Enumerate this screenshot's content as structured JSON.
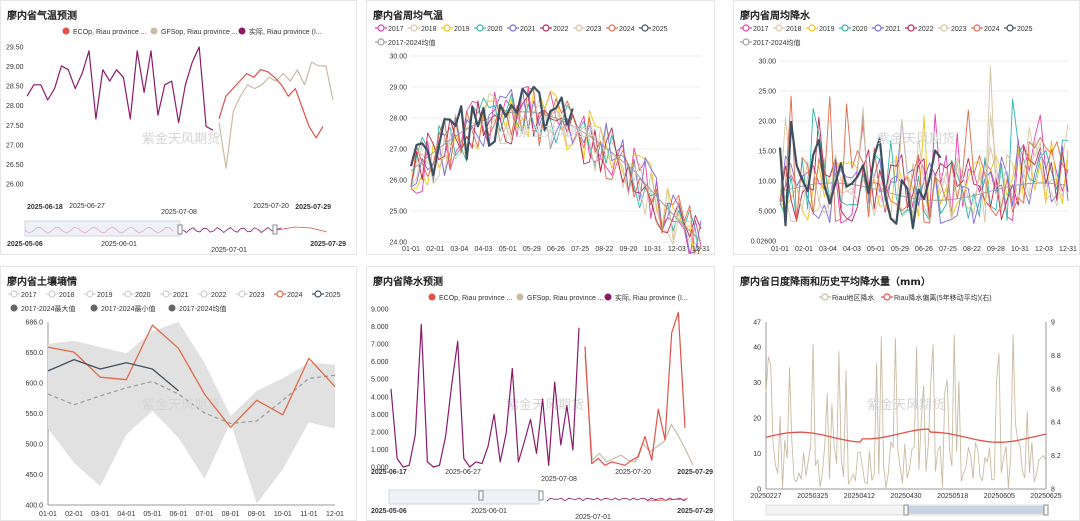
{
  "panels": {
    "temp_forecast": {
      "title": "廖内省气温预测"
    },
    "weekly_temp": {
      "title": "廖内省周均气温"
    },
    "weekly_rain": {
      "title": "廖内省周均降水"
    },
    "soil": {
      "title": "廖内省土壤墒情"
    },
    "rain_forecast": {
      "title": "廖内省降水预测"
    },
    "daily_rain": {
      "title": "廖内省日度降雨和历史平均降水量（mm）"
    }
  },
  "watermark": "紫金天风期货",
  "colors": {
    "ecop": "#e0524a",
    "gfsop": "#c9bba3",
    "actual": "#8c1a6a",
    "dark": "#3e5060",
    "y2017": "#e43fb1",
    "y2018": "#d4c8a6",
    "y2019": "#f2c318",
    "y2020": "#2fb5a8",
    "y2021": "#7b6cd6",
    "y2022": "#b9264f",
    "y2023": "#d5c7a3",
    "y2024": "#e06a4a",
    "y2025": "#3e5060",
    "avg": "#9e9e9e",
    "band": "#e1e1e1"
  },
  "chart_data": [
    {
      "id": "temp_forecast",
      "type": "line",
      "legend": [
        "ECOp, Riau province ...",
        "GFSop, Riau province ...",
        "实际, Riau province (I..."
      ],
      "yticks": [
        "29.50",
        "29.00",
        "28.50",
        "28.00",
        "27.50",
        "27.00",
        "26.50",
        "26.00"
      ],
      "ylim": [
        25.9,
        29.6
      ],
      "xticks": [
        "2025-06-18",
        "2025-06-27",
        "2025-07-08",
        "2025-07-20",
        "2025-07-29"
      ],
      "actual": [
        28.3,
        28.6,
        28.6,
        28.2,
        28.5,
        29.1,
        29.0,
        28.5,
        28.9,
        29.5,
        27.7,
        29.0,
        28.7,
        29.0,
        28.8,
        27.7,
        29.5,
        28.4,
        29.5,
        27.8,
        28.6,
        28.7,
        27.6,
        28.6,
        29.2,
        29.6,
        27.5,
        27.4
      ],
      "ecop": [
        27.7,
        28.3,
        28.5,
        28.7,
        28.9,
        28.8,
        29.0,
        28.95,
        28.8,
        28.6,
        28.3,
        28.5,
        28.0,
        27.5,
        27.2,
        27.5
      ],
      "gfsop": [
        27.6,
        26.4,
        27.9,
        28.3,
        28.6,
        28.5,
        28.6,
        28.8,
        28.7,
        28.9,
        28.7,
        29.0,
        28.6,
        29.2,
        29.1,
        29.1,
        28.2
      ],
      "nav_labels": [
        "2025-05-06",
        "2025-06-01",
        "2025-07-01",
        "2025-07-29"
      ]
    },
    {
      "id": "weekly_temp",
      "type": "line",
      "legend": [
        "2017",
        "2018",
        "2019",
        "2020",
        "2021",
        "2022",
        "2023",
        "2024",
        "2025",
        "2017-2024均值"
      ],
      "yticks": [
        "30.00",
        "29.00",
        "28.00",
        "27.00",
        "26.00",
        "25.00",
        "24.00"
      ],
      "ylim": [
        24,
        30
      ],
      "xticks": [
        "01-01",
        "02-01",
        "03-04",
        "04-03",
        "05-01",
        "05-29",
        "06-26",
        "07-25",
        "08-22",
        "09-20",
        "10-31",
        "12-03",
        "12-31"
      ]
    },
    {
      "id": "weekly_rain",
      "type": "line",
      "legend": [
        "2017",
        "2018",
        "2019",
        "2020",
        "2021",
        "2022",
        "2023",
        "2024",
        "2025",
        "2017-2024均值"
      ],
      "yticks": [
        "30.00",
        "25.00",
        "20.00",
        "15.00",
        "10.00",
        "5.000",
        "0.02600"
      ],
      "ylim": [
        0,
        31
      ],
      "xticks": [
        "01-01",
        "02-01",
        "03-04",
        "04-03",
        "05-01",
        "05-29",
        "06-26",
        "07-25",
        "08-22",
        "09-28",
        "10-31",
        "12-03",
        "12-31"
      ]
    },
    {
      "id": "soil",
      "type": "line",
      "legend": [
        "2017",
        "2018",
        "2019",
        "2020",
        "2021",
        "2022",
        "2023",
        "2024",
        "2025",
        "2017-2024最大值",
        "2017-2024最小值",
        "2017-2024均值"
      ],
      "yticks": [
        "686.0",
        "650.0",
        "600.0",
        "550.0",
        "500.0",
        "450.0",
        "400.0"
      ],
      "ylim": [
        398,
        690
      ],
      "xticks": [
        "01-01",
        "02-01",
        "03-01",
        "04-01",
        "05-01",
        "06-01",
        "07-01",
        "08-01",
        "09-01",
        "10-01",
        "11-01",
        "12-01"
      ],
      "y2024": [
        650,
        642,
        602,
        598,
        685,
        648,
        575,
        522,
        565,
        542,
        632,
        587
      ],
      "y2025": [
        612,
        630,
        615,
        625,
        615,
        580
      ],
      "max": [
        655,
        660,
        650,
        640,
        675,
        690,
        625,
        540,
        580,
        600,
        625,
        622
      ],
      "min": [
        520,
        465,
        428,
        510,
        548,
        505,
        440,
        530,
        400,
        455,
        530,
        520
      ],
      "avg": [
        575,
        558,
        572,
        585,
        595,
        575,
        545,
        528,
        532,
        565,
        600,
        605
      ]
    },
    {
      "id": "rain_forecast",
      "type": "line",
      "legend": [
        "ECOp, Riau province ...",
        "GFSop, Riau province ...",
        "实际, Riau province (I..."
      ],
      "yticks": [
        "9.000",
        "8.000",
        "7.000",
        "6.000",
        "5.000",
        "4.000",
        "3.000",
        "2.000",
        "1.000",
        "0.000"
      ],
      "ylim": [
        0,
        9.3
      ],
      "xticks": [
        "2025-06-17",
        "2025-06-27",
        "2025-07-08",
        "2025-07-20",
        "2025-07-29"
      ],
      "actual": [
        4.6,
        0.5,
        0,
        0.1,
        1.9,
        8.4,
        0.3,
        0,
        0.1,
        1.8,
        4.8,
        7.4,
        0.5,
        0,
        0.3,
        0.2,
        1.2,
        3.1,
        0.3,
        2.0,
        5.8,
        0.3,
        1.5,
        2.8,
        0.8,
        4.0,
        0.1,
        5.0,
        1.3,
        3.6,
        1.0,
        8.2
      ],
      "ecop": [
        7.1,
        0.2,
        0.5,
        0.1,
        0.3,
        0.2,
        0.1,
        0.4,
        0.6,
        1.8,
        0.4,
        3.4,
        1.6,
        7.9,
        9.1,
        2.3
      ],
      "gfsop": [
        6.6,
        0.4,
        0.8,
        0.3,
        0.5,
        0.7,
        0.4,
        0.3,
        1.4,
        0.9,
        1.2,
        1.5,
        2.5,
        1.8,
        1.0,
        0.1
      ],
      "nav_labels": [
        "2025-05-06",
        "2025-06-01",
        "2025-07-01",
        "2025-07-29"
      ]
    },
    {
      "id": "daily_rain",
      "type": "line",
      "legend": [
        "Riau地区降水",
        "Riau降水偏离(5年移动平均)(右)"
      ],
      "yticks_left": [
        "47",
        "40",
        "30",
        "20",
        "10",
        "0"
      ],
      "yticks_right": [
        "9",
        "8.8",
        "8.6",
        "8.4",
        "8.2",
        "8"
      ],
      "ylim_left": [
        0,
        47
      ],
      "ylim_right": [
        8,
        9
      ],
      "xticks": [
        "20250227",
        "20250325",
        "20250412",
        "20250430",
        "20250518",
        "20250605",
        "20250625"
      ]
    }
  ]
}
